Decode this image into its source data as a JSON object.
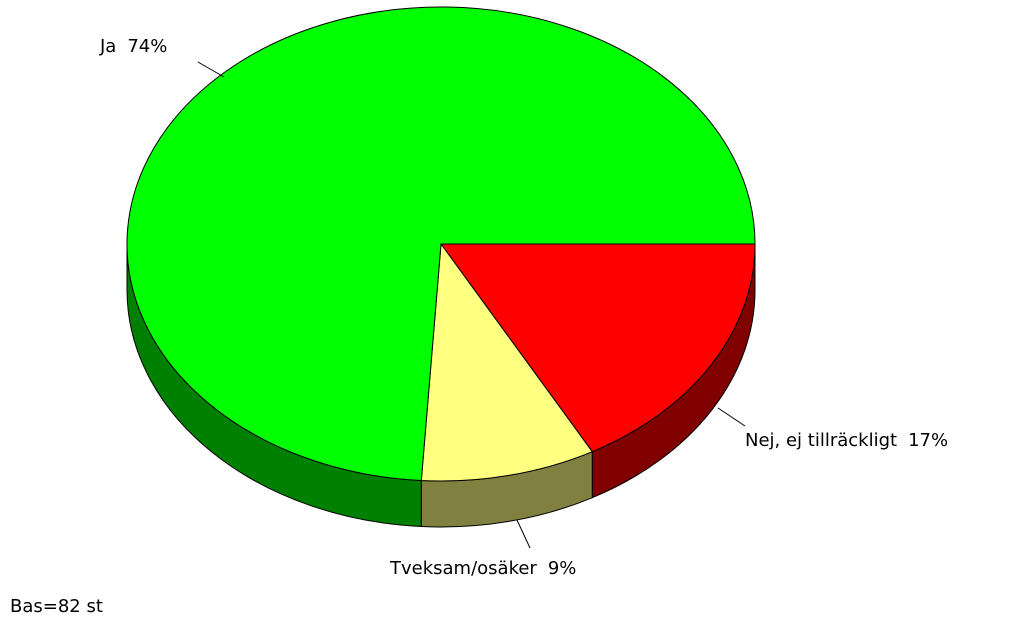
{
  "chart_data": {
    "type": "pie",
    "three_d": true,
    "categories": [
      "Nej, ej tillräckligt",
      "Tveksam/osäker",
      "Ja"
    ],
    "values": [
      17,
      9,
      74
    ],
    "value_labels": [
      "17%",
      "9%",
      "74%"
    ],
    "colors": [
      "#ff0000",
      "#ffff80",
      "#00ff00"
    ],
    "side_colors": [
      "#800000",
      "#808040",
      "#008000"
    ],
    "footnote": "Bas=82 st"
  }
}
